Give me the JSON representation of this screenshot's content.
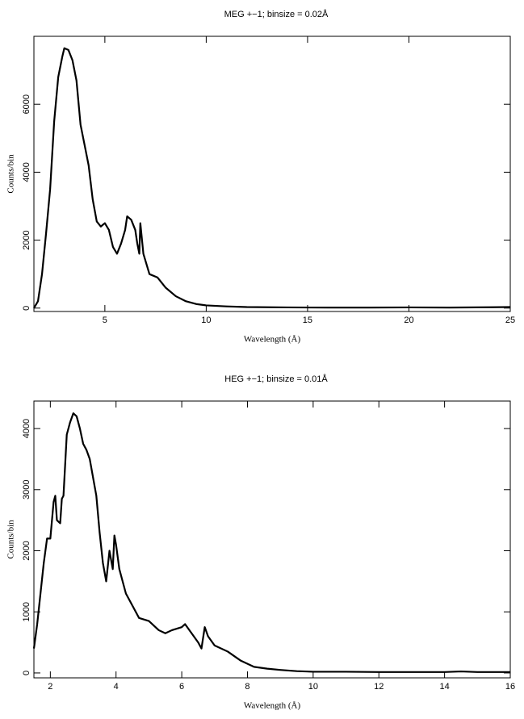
{
  "chart_data": [
    {
      "type": "line",
      "title": "MEG +−1; binsize = 0.02Å",
      "x_label": "Wavelength (Å)",
      "y_label": "Counts/bin",
      "x": [
        1.5,
        1.7,
        1.9,
        2.1,
        2.3,
        2.5,
        2.7,
        2.9,
        3.0,
        3.2,
        3.4,
        3.6,
        3.8,
        4.0,
        4.2,
        4.4,
        4.6,
        4.8,
        5.0,
        5.2,
        5.4,
        5.6,
        5.8,
        6.0,
        6.1,
        6.3,
        6.5,
        6.6,
        6.7,
        6.75,
        6.9,
        7.2,
        7.6,
        8.0,
        8.5,
        9.0,
        9.5,
        10,
        11,
        12,
        14,
        16,
        18,
        20,
        22,
        24,
        25
      ],
      "values": [
        0,
        200,
        1000,
        2200,
        3500,
        5500,
        6800,
        7400,
        7650,
        7600,
        7300,
        6700,
        5400,
        4800,
        4200,
        3200,
        2550,
        2400,
        2500,
        2300,
        1800,
        1600,
        1900,
        2300,
        2700,
        2600,
        2300,
        1900,
        1600,
        2500,
        1600,
        1000,
        900,
        600,
        350,
        200,
        120,
        80,
        50,
        30,
        20,
        15,
        15,
        20,
        15,
        25,
        30
      ],
      "color": "#000000",
      "xlim": [
        1.5,
        25
      ],
      "ylim": [
        -100,
        8000
      ],
      "xticks": [
        5,
        10,
        15,
        20,
        25
      ],
      "yticks": [
        0,
        2000,
        4000,
        6000
      ]
    },
    {
      "type": "line",
      "title": "HEG +−1; binsize = 0.01Å",
      "x_label": "Wavelength (Å)",
      "y_label": "Counts/bin",
      "x": [
        1.5,
        1.6,
        1.7,
        1.8,
        1.9,
        2.0,
        2.1,
        2.15,
        2.2,
        2.3,
        2.35,
        2.4,
        2.45,
        2.5,
        2.6,
        2.7,
        2.8,
        2.9,
        3.0,
        3.1,
        3.2,
        3.3,
        3.4,
        3.5,
        3.6,
        3.7,
        3.8,
        3.9,
        3.95,
        4.0,
        4.1,
        4.2,
        4.3,
        4.5,
        4.7,
        5.0,
        5.3,
        5.5,
        5.7,
        6.0,
        6.1,
        6.3,
        6.5,
        6.6,
        6.7,
        6.8,
        7.0,
        7.4,
        7.8,
        8.2,
        8.6,
        9.0,
        9.5,
        10,
        11,
        12,
        13,
        14,
        14.5,
        15,
        16
      ],
      "values": [
        400,
        800,
        1300,
        1800,
        2200,
        2200,
        2800,
        2900,
        2500,
        2450,
        2850,
        2900,
        3400,
        3900,
        4100,
        4250,
        4200,
        4000,
        3750,
        3650,
        3500,
        3200,
        2900,
        2300,
        1800,
        1500,
        2000,
        1700,
        2250,
        2100,
        1700,
        1500,
        1300,
        1100,
        900,
        850,
        700,
        650,
        700,
        750,
        800,
        650,
        500,
        400,
        750,
        600,
        450,
        350,
        200,
        100,
        70,
        50,
        30,
        20,
        20,
        15,
        15,
        15,
        25,
        15,
        15
      ],
      "color": "#000000",
      "xlim": [
        1.5,
        16
      ],
      "ylim": [
        -80,
        4450
      ],
      "xticks": [
        2,
        4,
        6,
        8,
        10,
        12,
        14,
        16
      ],
      "yticks": [
        0,
        1000,
        2000,
        3000,
        4000
      ]
    }
  ]
}
